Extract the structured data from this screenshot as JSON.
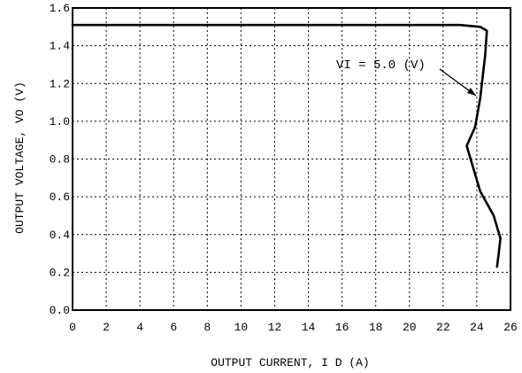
{
  "chart_data": {
    "type": "line",
    "xlabel": "OUTPUT  CURRENT,  I D  (A)",
    "ylabel": "OUTPUT VOLTAGE,  VO  (V)",
    "xlim": [
      0,
      26
    ],
    "ylim": [
      0.0,
      1.6
    ],
    "x_ticks": [
      "0",
      "2",
      "4",
      "6",
      "8",
      "10",
      "12",
      "14",
      "16",
      "18",
      "20",
      "22",
      "24",
      "26"
    ],
    "y_ticks": [
      "0.0",
      "0.2",
      "0.4",
      "0.6",
      "0.8",
      "1.0",
      "1.2",
      "1.4",
      "1.6"
    ],
    "grid": true,
    "annotation": "VI = 5.0 (V)",
    "series": [
      {
        "x": [
          0,
          6,
          12,
          18,
          21,
          23,
          24.2,
          24.6,
          24.5,
          24.2,
          23.9,
          23.4,
          24.2,
          25.0,
          25.4,
          25.3,
          25.2
        ],
        "y": [
          1.51,
          1.51,
          1.51,
          1.51,
          1.51,
          1.51,
          1.5,
          1.48,
          1.35,
          1.12,
          0.97,
          0.87,
          0.63,
          0.5,
          0.38,
          0.3,
          0.23
        ]
      }
    ]
  }
}
